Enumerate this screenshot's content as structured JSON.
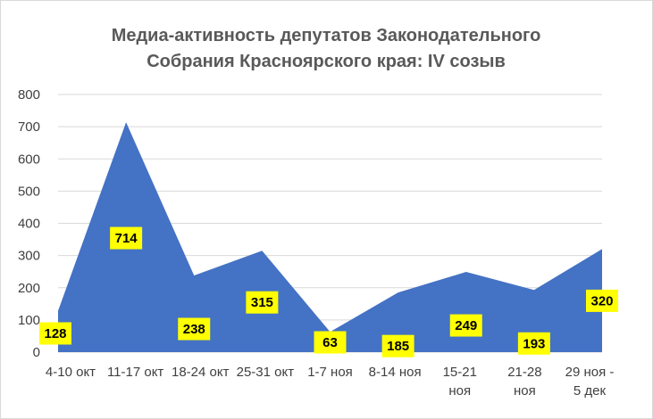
{
  "chart_data": {
    "type": "area",
    "title": [
      "Медиа-активность депутатов Законодательного",
      "Собрания Красноярского края:  IV созыв"
    ],
    "categories": [
      [
        "4-10 окт"
      ],
      [
        "11-17 окт"
      ],
      [
        "18-24 окт"
      ],
      [
        "25-31 окт"
      ],
      [
        "1-7 ноя"
      ],
      [
        "8-14 ноя"
      ],
      [
        "15-21",
        "ноя"
      ],
      [
        "21-28",
        "ноя"
      ],
      [
        "29 ноя -",
        "5 дек"
      ]
    ],
    "values": [
      128,
      714,
      238,
      315,
      63,
      185,
      249,
      193,
      320
    ],
    "ylim": [
      0,
      800
    ],
    "yticks": [
      0,
      100,
      200,
      300,
      400,
      500,
      600,
      700,
      800
    ],
    "grid": true,
    "legend": "none",
    "colors": {
      "area": "#4472C4",
      "label_bg": "#FFFF00",
      "grid": "#D9D9D9"
    }
  }
}
